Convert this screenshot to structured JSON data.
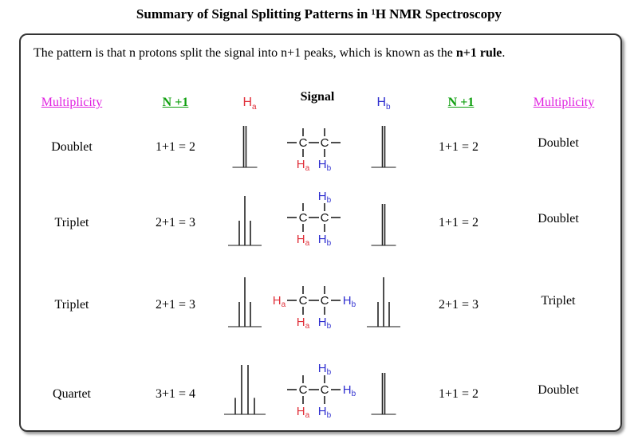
{
  "title": "Summary of Signal Splitting Patterns in ¹H NMR Spectroscopy",
  "intro": {
    "text": "The pattern is that n protons split the signal into n+1 peaks, which is known as the ",
    "bold": "n+1 rule",
    "end": "."
  },
  "headers": {
    "multiplicity_left": "Multiplicity",
    "n1_left": "N +1",
    "ha": "H",
    "ha_sub": "a",
    "signal": "Signal",
    "hb": "H",
    "hb_sub": "b",
    "n1_right": "N +1",
    "multiplicity_right": "Multiplicity"
  },
  "colors": {
    "multiplicity": "#e020e0",
    "n1": "#10a010",
    "ha": "#e0303a",
    "hb": "#3030d0"
  },
  "rows": [
    {
      "mult_a": "Doublet",
      "n1_a": "1+1 = 2",
      "peaks_a": 2,
      "peaks_b": 2,
      "n1_b": "1+1 = 2",
      "mult_b": "Doublet",
      "structure": {
        "left": null,
        "right": null,
        "top_a": null,
        "top_b": null,
        "bottom_a": "Ha",
        "bottom_b": "Hb"
      }
    },
    {
      "mult_a": "Triplet",
      "n1_a": "2+1 = 3",
      "peaks_a": 3,
      "peaks_b": 2,
      "n1_b": "1+1 = 2",
      "mult_b": "Doublet",
      "structure": {
        "left": null,
        "right": null,
        "top_a": null,
        "top_b": "Hb",
        "bottom_a": "Ha",
        "bottom_b": "Hb"
      }
    },
    {
      "mult_a": "Triplet",
      "n1_a": "2+1 = 3",
      "peaks_a": 3,
      "peaks_b": 3,
      "n1_b": "2+1 = 3",
      "mult_b": "Triplet",
      "structure": {
        "left": "Ha",
        "right": "Hb",
        "top_a": null,
        "top_b": null,
        "bottom_a": "Ha",
        "bottom_b": "Hb"
      }
    },
    {
      "mult_a": "Quartet",
      "n1_a": "3+1 = 4",
      "peaks_a": 4,
      "peaks_b": 2,
      "n1_b": "1+1 = 2",
      "mult_b": "Doublet",
      "structure": {
        "left": null,
        "right": "Hb",
        "top_a": null,
        "top_b": "Hb",
        "bottom_a": "Ha",
        "bottom_b": "Hb"
      }
    }
  ]
}
